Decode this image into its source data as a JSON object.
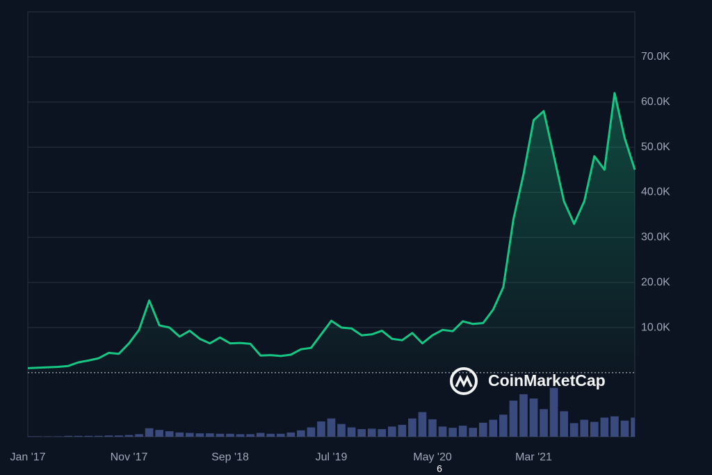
{
  "chart_data": {
    "type": "line",
    "x": [
      "2017-01",
      "2017-02",
      "2017-03",
      "2017-04",
      "2017-05",
      "2017-06",
      "2017-07",
      "2017-08",
      "2017-09",
      "2017-10",
      "2017-11",
      "2017-12",
      "2018-01",
      "2018-02",
      "2018-03",
      "2018-04",
      "2018-05",
      "2018-06",
      "2018-07",
      "2018-08",
      "2018-09",
      "2018-10",
      "2018-11",
      "2018-12",
      "2019-01",
      "2019-02",
      "2019-03",
      "2019-04",
      "2019-05",
      "2019-06",
      "2019-07",
      "2019-08",
      "2019-09",
      "2019-10",
      "2019-11",
      "2019-12",
      "2020-01",
      "2020-02",
      "2020-03",
      "2020-04",
      "2020-05",
      "2020-06",
      "2020-07",
      "2020-08",
      "2020-09",
      "2020-10",
      "2020-11",
      "2020-12",
      "2021-01",
      "2021-02",
      "2021-03",
      "2021-04",
      "2021-05",
      "2021-06",
      "2021-07",
      "2021-08",
      "2021-09",
      "2021-10",
      "2021-11",
      "2021-12",
      "2022-01"
    ],
    "series": [
      {
        "color": "#16c784",
        "values": [
          1000,
          1100,
          1200,
          1300,
          1500,
          2300,
          2700,
          3200,
          4400,
          4200,
          6500,
          9500,
          16000,
          10500,
          10000,
          8000,
          9300,
          7500,
          6500,
          7800,
          6500,
          6600,
          6400,
          3800,
          3900,
          3700,
          4000,
          5200,
          5500,
          8500,
          11500,
          10000,
          9800,
          8300,
          8500,
          9300,
          7500,
          7200,
          8800,
          6500,
          8300,
          9500,
          9200,
          11400,
          10800,
          11000,
          14000,
          19000,
          34000,
          44000,
          56000,
          58000,
          48000,
          38000,
          33000,
          38000,
          48000,
          45000,
          62000,
          52000,
          45000
        ]
      },
      {
        "color": "#3b4a7d",
        "axis": "y2",
        "values": [
          0.1,
          0.1,
          0.1,
          0.1,
          0.2,
          0.2,
          0.2,
          0.2,
          0.3,
          0.3,
          0.4,
          0.6,
          2.0,
          1.6,
          1.3,
          1.0,
          0.9,
          0.8,
          0.8,
          0.7,
          0.7,
          0.6,
          0.6,
          0.9,
          0.7,
          0.7,
          1.0,
          1.5,
          2.2,
          3.6,
          4.3,
          3.0,
          2.2,
          1.8,
          1.9,
          1.8,
          2.4,
          2.8,
          4.3,
          5.8,
          4.1,
          2.4,
          2.1,
          2.6,
          2.1,
          3.3,
          4.0,
          5.2,
          8.5,
          10.0,
          9.0,
          6.5,
          11.5,
          6.0,
          3.2,
          4.0,
          3.5,
          4.5,
          4.8,
          3.8,
          4.5
        ]
      }
    ],
    "xlim": [
      "2017-01",
      "2022-01"
    ],
    "xticks": [
      {
        "value": "2017-01",
        "label": "Jan '17"
      },
      {
        "value": "2017-11",
        "label": "Nov '17"
      },
      {
        "value": "2018-09",
        "label": "Sep '18"
      },
      {
        "value": "2019-07",
        "label": "Jul '19"
      },
      {
        "value": "2020-05",
        "label": "May '20"
      },
      {
        "value": "2021-03",
        "label": "Mar '21"
      }
    ],
    "ylim": [
      -14200,
      80000
    ],
    "yticks": [
      {
        "value": 10000,
        "label": "10.0K"
      },
      {
        "value": 20000,
        "label": "20.0K"
      },
      {
        "value": 30000,
        "label": "30.0K"
      },
      {
        "value": 40000,
        "label": "40.0K"
      },
      {
        "value": 50000,
        "label": "50.0K"
      },
      {
        "value": 60000,
        "label": "60.0K"
      },
      {
        "value": 70000,
        "label": "70.0K"
      }
    ],
    "y2lim": [
      0,
      100
    ],
    "grid": true,
    "watermark": "CoinMarketCap",
    "annotation": "6"
  }
}
